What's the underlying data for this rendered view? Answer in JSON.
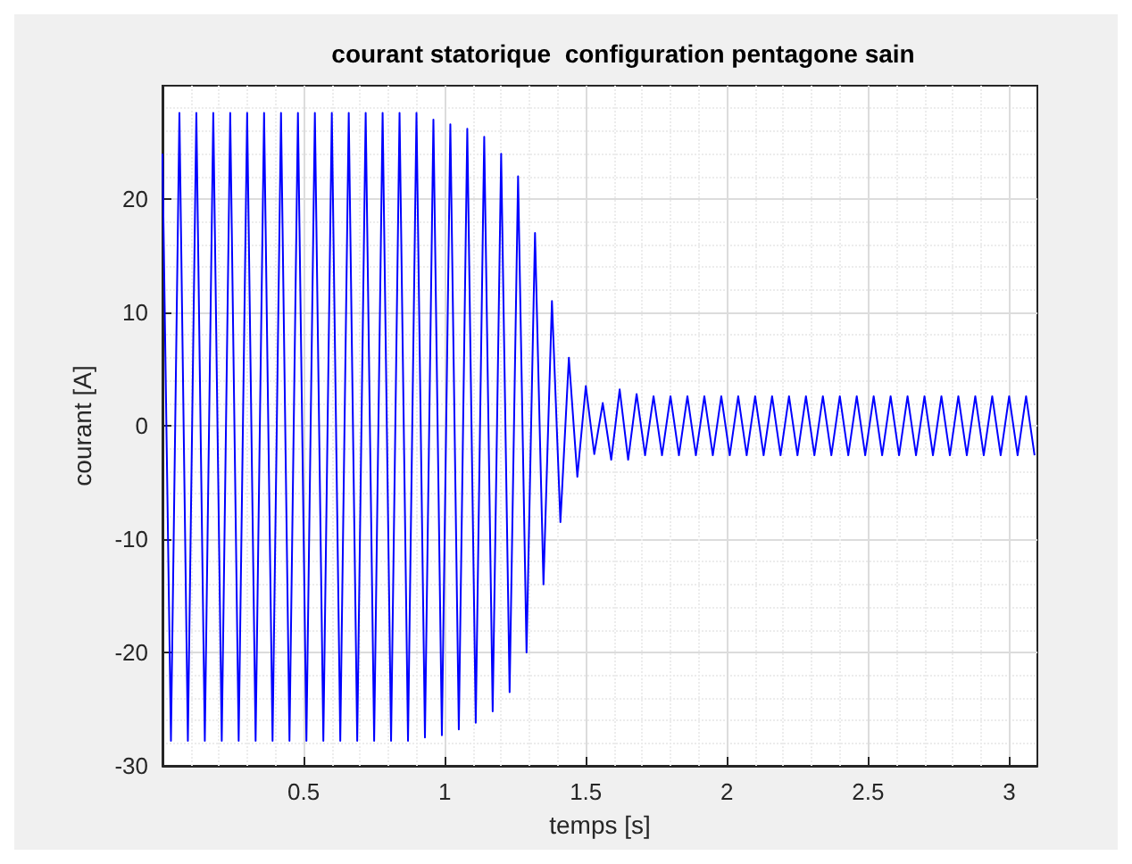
{
  "chart_data": {
    "type": "line",
    "title": "courant statorique  configuration pentagone sain",
    "xlabel": "temps [s]",
    "ylabel": "courant [A]",
    "x": [
      0,
      0.03,
      0.06,
      0.09,
      0.12,
      0.15,
      0.18,
      0.21,
      0.24,
      0.27,
      0.3,
      0.33,
      0.36,
      0.39,
      0.42,
      0.45,
      0.48,
      0.51,
      0.54,
      0.57,
      0.6,
      0.63,
      0.66,
      0.69,
      0.72,
      0.75,
      0.78,
      0.81,
      0.84,
      0.87,
      0.9,
      0.93,
      0.96,
      0.99,
      1.02,
      1.05,
      1.08,
      1.11,
      1.14,
      1.17,
      1.2,
      1.23,
      1.26,
      1.29,
      1.32,
      1.35,
      1.38,
      1.41,
      1.44,
      1.47,
      1.5,
      1.53,
      1.56,
      1.59,
      1.62,
      1.65,
      1.68,
      1.71,
      1.74,
      1.77,
      1.8,
      1.83,
      1.86,
      1.89,
      1.92,
      1.95,
      1.98,
      2.01,
      2.04,
      2.07,
      2.1,
      2.13,
      2.16,
      2.19,
      2.22,
      2.25,
      2.28,
      2.31,
      2.34,
      2.37,
      2.4,
      2.43,
      2.46,
      2.49,
      2.52,
      2.55,
      2.58,
      2.61,
      2.64,
      2.67,
      2.7,
      2.73,
      2.76,
      2.79,
      2.82,
      2.85,
      2.88,
      2.91,
      2.94,
      2.97,
      3,
      3.03,
      3.06,
      3.09
    ],
    "series": [
      {
        "color": "#0000ff",
        "values": [
          24,
          -27.8,
          27.6,
          -27.8,
          27.6,
          -27.8,
          27.6,
          -27.8,
          27.6,
          -27.8,
          27.6,
          -27.8,
          27.6,
          -27.8,
          27.6,
          -27.8,
          27.6,
          -27.8,
          27.6,
          -27.8,
          27.6,
          -27.8,
          27.6,
          -27.8,
          27.6,
          -27.8,
          27.6,
          -27.8,
          27.6,
          -27.8,
          27.6,
          -27.5,
          27,
          -27.3,
          26.6,
          -26.8,
          26.2,
          -26.2,
          25.5,
          -25.2,
          24,
          -23.5,
          22,
          -20,
          17,
          -14,
          11,
          -8.5,
          6,
          -4.5,
          3.5,
          -2.5,
          2,
          -3,
          3.2,
          -3,
          2.8,
          -2.6,
          2.6,
          -2.6,
          2.6,
          -2.6,
          2.6,
          -2.6,
          2.6,
          -2.6,
          2.6,
          -2.6,
          2.6,
          -2.6,
          2.6,
          -2.6,
          2.6,
          -2.6,
          2.6,
          -2.6,
          2.6,
          -2.6,
          2.6,
          -2.6,
          2.6,
          -2.6,
          2.6,
          -2.6,
          2.6,
          -2.6,
          2.6,
          -2.6,
          2.6,
          -2.6,
          2.6,
          -2.6,
          2.6,
          -2.6,
          2.6,
          -2.6,
          2.6,
          -2.6,
          2.6,
          -2.6,
          2.6,
          -2.6,
          2.6,
          -2.6
        ]
      }
    ],
    "xlim": [
      0,
      3.1
    ],
    "xticks": [
      0.5,
      1,
      1.5,
      2,
      2.5,
      3
    ],
    "ylim": [
      -30,
      30
    ],
    "yticks": [
      -30,
      -20,
      -10,
      0,
      10,
      20
    ],
    "grid": true,
    "marker": "none",
    "line_style": "solid"
  }
}
